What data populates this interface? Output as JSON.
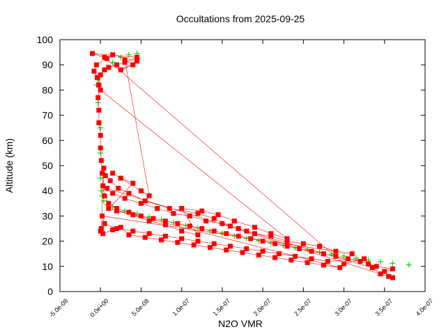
{
  "chart_data": {
    "type": "scatter",
    "title": "Occultations from 2025-09-25",
    "xlabel": "N2O VMR",
    "ylabel": "Altitude (km)",
    "xlim": [
      -5e-08,
      4e-07
    ],
    "ylim": [
      0,
      100
    ],
    "x_ticks": [
      "-5.0e-08",
      "0.0e+00",
      "5.0e-08",
      "1.0e-07",
      "1.5e-07",
      "2.0e-07",
      "2.5e-07",
      "3.0e-07",
      "3.5e-07",
      "4.0e-07"
    ],
    "x_tick_values": [
      -5e-08,
      0,
      5e-08,
      1e-07,
      1.5e-07,
      2e-07,
      2.5e-07,
      3e-07,
      3.5e-07,
      4e-07
    ],
    "y_ticks": [
      "0",
      "10",
      "20",
      "30",
      "40",
      "50",
      "60",
      "70",
      "80",
      "90",
      "100"
    ],
    "y_tick_values": [
      0,
      10,
      20,
      30,
      40,
      50,
      60,
      70,
      80,
      90,
      100
    ],
    "grid": false,
    "legend": "none",
    "series": [
      {
        "color": "#00dd00",
        "marker": "plus",
        "points": [
          [
            3.8e-07,
            10.6
          ],
          [
            3.6e-07,
            11.2
          ],
          [
            3.45e-07,
            11.8
          ],
          [
            3.3e-07,
            12.5
          ],
          [
            3.15e-07,
            13.3
          ],
          [
            3e-07,
            14.1
          ],
          [
            2.85e-07,
            14.9
          ],
          [
            2.7e-07,
            15.7
          ],
          [
            2.55e-07,
            16.6
          ],
          [
            2.4e-07,
            17.4
          ],
          [
            2.25e-07,
            18.3
          ],
          [
            2.1e-07,
            19.2
          ],
          [
            1.95e-07,
            20.2
          ],
          [
            1.8e-07,
            21.1
          ],
          [
            1.65e-07,
            22.1
          ],
          [
            1.5e-07,
            23.1
          ],
          [
            1.35e-07,
            24.1
          ],
          [
            1.2e-07,
            25.2
          ],
          [
            1.05e-07,
            26.3
          ],
          [
            9e-08,
            27.4
          ],
          [
            7.5e-08,
            28.5
          ],
          [
            6e-08,
            29.7
          ],
          [
            4.5e-08,
            30.9
          ],
          [
            3e-08,
            32.0
          ],
          [
            1.5e-08,
            33.5
          ],
          [
            8e-09,
            34.5
          ],
          [
            4e-09,
            36.0
          ],
          [
            2e-09,
            38.0
          ],
          [
            1e-09,
            40.0
          ],
          [
            0,
            45.0
          ],
          [
            0,
            55.0
          ],
          [
            0,
            65.0
          ],
          [
            -3e-09,
            75.0
          ],
          [
            -5e-09,
            82.0
          ],
          [
            -3e-09,
            84.0
          ],
          [
            5e-09,
            88.0
          ],
          [
            1.5e-08,
            91.0
          ],
          [
            2.5e-08,
            93.0
          ],
          [
            3.5e-08,
            94.0
          ],
          [
            4.5e-08,
            94.5
          ]
        ]
      },
      {
        "color": "#ff0000",
        "marker": "square",
        "points": [
          [
            3.55e-07,
            6.0
          ],
          [
            3.5e-07,
            8.0
          ],
          [
            3.6e-07,
            9.0
          ],
          [
            3.4e-07,
            10.0
          ],
          [
            3.3e-07,
            11.0
          ],
          [
            3.2e-07,
            12.0
          ],
          [
            3.05e-07,
            13.0
          ],
          [
            2.9e-07,
            14.0
          ],
          [
            2.75e-07,
            15.0
          ],
          [
            2.6e-07,
            16.0
          ],
          [
            2.45e-07,
            17.0
          ],
          [
            2.3e-07,
            18.0
          ],
          [
            2.15e-07,
            19.0
          ],
          [
            2e-07,
            20.0
          ],
          [
            1.85e-07,
            21.0
          ],
          [
            1.7e-07,
            22.0
          ],
          [
            1.55e-07,
            23.0
          ],
          [
            1.4e-07,
            24.0
          ],
          [
            1.25e-07,
            25.0
          ],
          [
            1.1e-07,
            26.0
          ],
          [
            9.5e-08,
            27.0
          ],
          [
            8e-08,
            28.0
          ],
          [
            6.5e-08,
            29.0
          ],
          [
            5e-08,
            30.0
          ],
          [
            3.5e-08,
            31.5
          ],
          [
            2e-08,
            33.0
          ],
          [
            1e-08,
            35.0
          ],
          [
            5e-09,
            38.0
          ],
          [
            3e-09,
            42.0
          ],
          [
            2e-09,
            47.0
          ],
          [
            1e-09,
            52.0
          ],
          [
            0,
            57.0
          ],
          [
            0,
            62.0
          ],
          [
            -2e-09,
            67.0
          ],
          [
            -2e-09,
            72.0
          ],
          [
            -3e-09,
            77.0
          ],
          [
            -2e-09,
            82.0
          ],
          [
            0,
            86.0
          ],
          [
            5e-09,
            88.0
          ],
          [
            1e-08,
            89.0
          ],
          [
            2e-08,
            90.0
          ],
          [
            3e-08,
            91.0
          ],
          [
            4.5e-08,
            93.0
          ],
          [
            -1e-08,
            94.5
          ],
          [
            5e-09,
            93.0
          ],
          [
            3e-07,
            11.0
          ],
          [
            3.25e-07,
            13.0
          ],
          [
            2.8e-07,
            12.0
          ],
          [
            2.6e-07,
            13.0
          ],
          [
            2.4e-07,
            14.0
          ],
          [
            2.2e-07,
            15.0
          ],
          [
            2e-07,
            16.0
          ],
          [
            1.8e-07,
            17.0
          ],
          [
            1.6e-07,
            18.0
          ],
          [
            1.4e-07,
            19.0
          ],
          [
            1.2e-07,
            20.0
          ],
          [
            1e-07,
            21.0
          ],
          [
            8e-08,
            22.0
          ],
          [
            6e-08,
            23.0
          ],
          [
            4e-08,
            24.0
          ],
          [
            2e-08,
            25.0
          ],
          [
            5e-09,
            27.0
          ],
          [
            2e-09,
            30.0
          ],
          [
            3.1e-07,
            15.0
          ],
          [
            2.9e-07,
            16.0
          ],
          [
            2.7e-07,
            18.0
          ],
          [
            2.5e-07,
            19.0
          ],
          [
            2.3e-07,
            20.0
          ],
          [
            2.1e-07,
            22.0
          ],
          [
            1.9e-07,
            23.0
          ],
          [
            1.7e-07,
            25.0
          ],
          [
            1.5e-07,
            27.0
          ],
          [
            1.3e-07,
            28.0
          ],
          [
            1.1e-07,
            30.0
          ],
          [
            9e-08,
            31.0
          ],
          [
            7e-08,
            33.0
          ],
          [
            5e-08,
            35.0
          ],
          [
            3e-08,
            37.0
          ],
          [
            1.5e-08,
            39.0
          ],
          [
            8e-09,
            41.0
          ],
          [
            3.6e-07,
            5.5
          ],
          [
            3.45e-07,
            7.0
          ],
          [
            3.35e-07,
            9.5
          ],
          [
            1.8e-07,
            24.0
          ],
          [
            1.6e-07,
            26.0
          ],
          [
            1.4e-07,
            29.0
          ],
          [
            1.2e-07,
            31.0
          ],
          [
            8.5e-08,
            33.0
          ],
          [
            5.5e-08,
            36.0
          ],
          [
            3.5e-08,
            39.0
          ],
          [
            2.2e-08,
            41.0
          ],
          [
            1.2e-08,
            44.0
          ],
          [
            6e-09,
            46.0
          ],
          [
            4e-09,
            49.0
          ],
          [
            1e-09,
            25.0
          ],
          [
            0,
            24.0
          ],
          [
            3e-09,
            23.0
          ],
          [
            1.5e-08,
            24.5
          ],
          [
            2.5e-08,
            25.5
          ],
          [
            3.5e-08,
            22.5
          ],
          [
            5.5e-08,
            21.5
          ],
          [
            7.5e-08,
            20.5
          ],
          [
            9.5e-08,
            19.5
          ],
          [
            1.15e-07,
            18.5
          ],
          [
            1.35e-07,
            17.5
          ],
          [
            1.55e-07,
            16.5
          ],
          [
            1.75e-07,
            15.5
          ],
          [
            1.95e-07,
            14.5
          ],
          [
            2.15e-07,
            13.5
          ],
          [
            2.35e-07,
            12.5
          ],
          [
            2.55e-07,
            11.5
          ],
          [
            2.75e-07,
            10.5
          ],
          [
            2.95e-07,
            9.5
          ],
          [
            1e-08,
            33.0
          ],
          [
            4e-08,
            43.0
          ],
          [
            2.5e-08,
            45.0
          ],
          [
            1.5e-08,
            47.0
          ],
          [
            5e-08,
            40.0
          ],
          [
            6e-08,
            38.0
          ],
          [
            3e-08,
            92.0
          ],
          [
            4e-08,
            90.0
          ],
          [
            2.5e-08,
            88.0
          ],
          [
            4.5e-08,
            91.5
          ],
          [
            1.5e-08,
            94.0
          ],
          [
            8e-09,
            92.5
          ],
          [
            -5e-09,
            90.0
          ],
          [
            -8e-09,
            87.5
          ],
          [
            -4e-09,
            85.0
          ],
          [
            0,
            80.0
          ],
          [
            2.3e-07,
            21.0
          ],
          [
            2.1e-07,
            23.0
          ],
          [
            1.9e-07,
            25.5
          ],
          [
            1.65e-07,
            28.0
          ],
          [
            1.45e-07,
            30.5
          ],
          [
            1.25e-07,
            32.0
          ],
          [
            1e-07,
            33.0
          ],
          [
            1.2e-07,
            22.5
          ],
          [
            1e-07,
            24.0
          ],
          [
            8e-08,
            26.5
          ],
          [
            6e-08,
            28.0
          ],
          [
            4e-08,
            30.5
          ],
          [
            2e-08,
            32.0
          ]
        ]
      }
    ]
  }
}
